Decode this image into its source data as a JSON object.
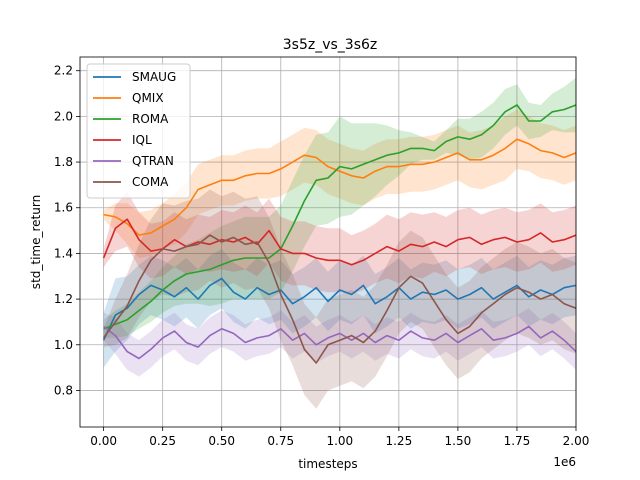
{
  "chart_data": {
    "type": "line",
    "title": "3s5z_vs_3s6z",
    "xlabel": "timesteps",
    "ylabel": "std_time_return",
    "x_offset_label": "1e6",
    "xlim": [
      -0.1,
      2.0
    ],
    "ylim": [
      0.64,
      2.26
    ],
    "xticks": [
      0.0,
      0.25,
      0.5,
      0.75,
      1.0,
      1.25,
      1.5,
      1.75,
      2.0
    ],
    "xtick_labels": [
      "0.00",
      "0.25",
      "0.50",
      "0.75",
      "1.00",
      "1.25",
      "1.50",
      "1.75",
      "2.00"
    ],
    "yticks": [
      0.8,
      1.0,
      1.2,
      1.4,
      1.6,
      1.8,
      2.0,
      2.2
    ],
    "ytick_labels": [
      "0.8",
      "1.0",
      "1.2",
      "1.4",
      "1.6",
      "1.8",
      "2.0",
      "2.2"
    ],
    "grid": true,
    "legend_position": "top-left",
    "series": [
      {
        "name": "SMAUG",
        "color": "#1f77b4",
        "x": [
          0.0,
          0.05,
          0.1,
          0.15,
          0.2,
          0.25,
          0.3,
          0.35,
          0.4,
          0.45,
          0.5,
          0.55,
          0.6,
          0.65,
          0.7,
          0.75,
          0.8,
          0.85,
          0.9,
          0.95,
          1.0,
          1.05,
          1.1,
          1.15,
          1.2,
          1.25,
          1.3,
          1.35,
          1.4,
          1.45,
          1.5,
          1.55,
          1.6,
          1.65,
          1.7,
          1.75,
          1.8,
          1.85,
          1.9,
          1.95,
          2.0
        ],
        "y": [
          1.02,
          1.13,
          1.16,
          1.22,
          1.26,
          1.24,
          1.21,
          1.25,
          1.2,
          1.26,
          1.29,
          1.23,
          1.2,
          1.25,
          1.22,
          1.24,
          1.18,
          1.21,
          1.25,
          1.19,
          1.24,
          1.22,
          1.26,
          1.18,
          1.21,
          1.25,
          1.2,
          1.23,
          1.22,
          1.24,
          1.2,
          1.22,
          1.25,
          1.2,
          1.23,
          1.26,
          1.21,
          1.24,
          1.22,
          1.25,
          1.26
        ],
        "band": [
          0.12,
          0.16,
          0.14,
          0.13,
          0.13,
          0.13,
          0.13,
          0.13,
          0.13,
          0.13,
          0.13,
          0.13,
          0.13,
          0.13,
          0.13,
          0.13,
          0.13,
          0.13,
          0.13,
          0.13,
          0.13,
          0.13,
          0.13,
          0.13,
          0.13,
          0.13,
          0.13,
          0.13,
          0.13,
          0.13,
          0.13,
          0.13,
          0.13,
          0.13,
          0.13,
          0.13,
          0.13,
          0.13,
          0.13,
          0.13,
          0.13
        ]
      },
      {
        "name": "QMIX",
        "color": "#ff7f0e",
        "x": [
          0.0,
          0.05,
          0.1,
          0.15,
          0.2,
          0.25,
          0.3,
          0.35,
          0.4,
          0.45,
          0.5,
          0.55,
          0.6,
          0.65,
          0.7,
          0.75,
          0.8,
          0.85,
          0.9,
          0.95,
          1.0,
          1.05,
          1.1,
          1.15,
          1.2,
          1.25,
          1.3,
          1.35,
          1.4,
          1.45,
          1.5,
          1.55,
          1.6,
          1.65,
          1.7,
          1.75,
          1.8,
          1.85,
          1.9,
          1.95,
          2.0
        ],
        "y": [
          1.57,
          1.56,
          1.53,
          1.48,
          1.49,
          1.52,
          1.55,
          1.6,
          1.68,
          1.7,
          1.72,
          1.72,
          1.74,
          1.75,
          1.75,
          1.77,
          1.8,
          1.83,
          1.82,
          1.78,
          1.76,
          1.74,
          1.73,
          1.76,
          1.78,
          1.78,
          1.79,
          1.79,
          1.8,
          1.82,
          1.84,
          1.81,
          1.81,
          1.83,
          1.86,
          1.9,
          1.88,
          1.85,
          1.84,
          1.82,
          1.84
        ],
        "band": [
          0.02,
          0.06,
          0.09,
          0.1,
          0.1,
          0.1,
          0.11,
          0.11,
          0.11,
          0.11,
          0.11,
          0.11,
          0.11,
          0.11,
          0.11,
          0.12,
          0.12,
          0.12,
          0.12,
          0.12,
          0.12,
          0.12,
          0.12,
          0.12,
          0.12,
          0.12,
          0.12,
          0.12,
          0.12,
          0.12,
          0.12,
          0.12,
          0.13,
          0.13,
          0.14,
          0.13,
          0.12,
          0.12,
          0.12,
          0.12,
          0.12
        ]
      },
      {
        "name": "ROMA",
        "color": "#2ca02c",
        "x": [
          0.0,
          0.05,
          0.1,
          0.15,
          0.2,
          0.25,
          0.3,
          0.35,
          0.4,
          0.45,
          0.5,
          0.55,
          0.6,
          0.65,
          0.7,
          0.75,
          0.8,
          0.85,
          0.9,
          0.95,
          1.0,
          1.05,
          1.1,
          1.15,
          1.2,
          1.25,
          1.3,
          1.35,
          1.4,
          1.45,
          1.5,
          1.55,
          1.6,
          1.65,
          1.7,
          1.75,
          1.8,
          1.85,
          1.9,
          1.95,
          2.0
        ],
        "y": [
          1.07,
          1.09,
          1.11,
          1.15,
          1.19,
          1.24,
          1.28,
          1.31,
          1.32,
          1.33,
          1.35,
          1.37,
          1.38,
          1.38,
          1.38,
          1.42,
          1.52,
          1.63,
          1.72,
          1.73,
          1.78,
          1.77,
          1.79,
          1.81,
          1.83,
          1.84,
          1.86,
          1.86,
          1.85,
          1.89,
          1.91,
          1.9,
          1.92,
          1.96,
          2.02,
          2.05,
          1.98,
          1.98,
          2.02,
          2.03,
          2.05
        ],
        "band": [
          0.04,
          0.06,
          0.07,
          0.08,
          0.09,
          0.1,
          0.11,
          0.13,
          0.14,
          0.16,
          0.17,
          0.17,
          0.18,
          0.18,
          0.18,
          0.19,
          0.2,
          0.2,
          0.2,
          0.2,
          0.22,
          0.2,
          0.18,
          0.16,
          0.13,
          0.1,
          0.07,
          0.05,
          0.04,
          0.05,
          0.08,
          0.09,
          0.1,
          0.1,
          0.1,
          0.09,
          0.08,
          0.07,
          0.08,
          0.1,
          0.12
        ]
      },
      {
        "name": "IQL",
        "color": "#d62728",
        "x": [
          0.0,
          0.05,
          0.1,
          0.15,
          0.2,
          0.25,
          0.3,
          0.35,
          0.4,
          0.45,
          0.5,
          0.55,
          0.6,
          0.65,
          0.7,
          0.75,
          0.8,
          0.85,
          0.9,
          0.95,
          1.0,
          1.05,
          1.1,
          1.15,
          1.2,
          1.25,
          1.3,
          1.35,
          1.4,
          1.45,
          1.5,
          1.55,
          1.6,
          1.65,
          1.7,
          1.75,
          1.8,
          1.85,
          1.9,
          1.95,
          2.0
        ],
        "y": [
          1.38,
          1.51,
          1.55,
          1.46,
          1.41,
          1.42,
          1.46,
          1.43,
          1.45,
          1.44,
          1.46,
          1.45,
          1.47,
          1.44,
          1.5,
          1.42,
          1.4,
          1.4,
          1.38,
          1.37,
          1.37,
          1.35,
          1.37,
          1.4,
          1.43,
          1.41,
          1.44,
          1.43,
          1.45,
          1.43,
          1.46,
          1.47,
          1.44,
          1.46,
          1.47,
          1.45,
          1.46,
          1.49,
          1.45,
          1.46,
          1.48
        ],
        "band": [
          0.04,
          0.1,
          0.12,
          0.12,
          0.12,
          0.12,
          0.12,
          0.12,
          0.12,
          0.12,
          0.13,
          0.13,
          0.14,
          0.14,
          0.14,
          0.14,
          0.14,
          0.14,
          0.14,
          0.14,
          0.14,
          0.13,
          0.13,
          0.13,
          0.14,
          0.14,
          0.14,
          0.14,
          0.13,
          0.13,
          0.13,
          0.13,
          0.13,
          0.13,
          0.13,
          0.13,
          0.13,
          0.13,
          0.13,
          0.13,
          0.13
        ]
      },
      {
        "name": "QTRAN",
        "color": "#9467bd",
        "x": [
          0.0,
          0.05,
          0.1,
          0.15,
          0.2,
          0.25,
          0.3,
          0.35,
          0.4,
          0.45,
          0.5,
          0.55,
          0.6,
          0.65,
          0.7,
          0.75,
          0.8,
          0.85,
          0.9,
          0.95,
          1.0,
          1.05,
          1.1,
          1.15,
          1.2,
          1.25,
          1.3,
          1.35,
          1.4,
          1.45,
          1.5,
          1.55,
          1.6,
          1.65,
          1.7,
          1.75,
          1.8,
          1.85,
          1.9,
          1.95,
          2.0
        ],
        "y": [
          1.08,
          1.04,
          0.97,
          0.94,
          0.98,
          1.03,
          1.06,
          1.01,
          0.99,
          1.04,
          1.07,
          1.05,
          1.01,
          1.03,
          1.04,
          1.07,
          1.02,
          1.05,
          1.0,
          1.03,
          1.05,
          1.02,
          1.05,
          1.01,
          1.04,
          1.02,
          1.06,
          1.03,
          1.02,
          1.05,
          1.01,
          1.04,
          1.07,
          1.02,
          1.03,
          1.05,
          1.08,
          1.03,
          1.06,
          1.02,
          0.97
        ],
        "band": [
          0.06,
          0.08,
          0.08,
          0.08,
          0.08,
          0.08,
          0.08,
          0.08,
          0.08,
          0.08,
          0.08,
          0.08,
          0.08,
          0.08,
          0.08,
          0.08,
          0.08,
          0.08,
          0.08,
          0.08,
          0.08,
          0.08,
          0.08,
          0.08,
          0.08,
          0.08,
          0.08,
          0.08,
          0.08,
          0.08,
          0.08,
          0.08,
          0.08,
          0.08,
          0.08,
          0.08,
          0.08,
          0.08,
          0.08,
          0.08,
          0.08
        ]
      },
      {
        "name": "COMA",
        "color": "#8c564b",
        "x": [
          0.0,
          0.05,
          0.1,
          0.15,
          0.2,
          0.25,
          0.3,
          0.35,
          0.4,
          0.45,
          0.5,
          0.55,
          0.6,
          0.65,
          0.7,
          0.75,
          0.8,
          0.85,
          0.9,
          0.95,
          1.0,
          1.05,
          1.1,
          1.15,
          1.2,
          1.25,
          1.3,
          1.35,
          1.4,
          1.45,
          1.5,
          1.55,
          1.6,
          1.65,
          1.7,
          1.75,
          1.8,
          1.85,
          1.9,
          1.95,
          2.0
        ],
        "y": [
          1.03,
          1.1,
          1.17,
          1.28,
          1.37,
          1.42,
          1.41,
          1.43,
          1.44,
          1.48,
          1.45,
          1.47,
          1.44,
          1.45,
          1.36,
          1.22,
          1.11,
          0.98,
          0.92,
          1.0,
          1.02,
          1.04,
          1.01,
          1.06,
          1.15,
          1.25,
          1.3,
          1.27,
          1.19,
          1.11,
          1.05,
          1.08,
          1.14,
          1.18,
          1.22,
          1.25,
          1.23,
          1.2,
          1.22,
          1.18,
          1.16
        ],
        "band": [
          0.04,
          0.1,
          0.14,
          0.16,
          0.18,
          0.2,
          0.2,
          0.2,
          0.2,
          0.2,
          0.2,
          0.2,
          0.2,
          0.2,
          0.2,
          0.2,
          0.2,
          0.2,
          0.2,
          0.2,
          0.2,
          0.2,
          0.2,
          0.2,
          0.2,
          0.2,
          0.2,
          0.2,
          0.2,
          0.2,
          0.2,
          0.2,
          0.2,
          0.2,
          0.2,
          0.2,
          0.2,
          0.2,
          0.2,
          0.2,
          0.2
        ]
      }
    ]
  }
}
